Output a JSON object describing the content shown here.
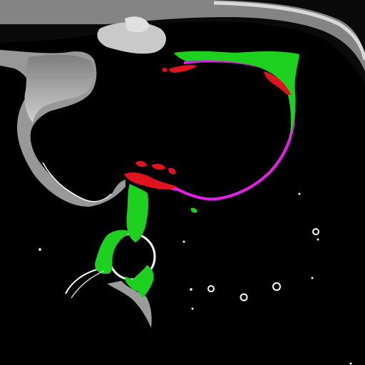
{
  "image": {
    "kind": "axial CT slice with segmentation overlay",
    "background_color": "#000000",
    "tissue_color": "#bcbcbc",
    "overlay_colors": {
      "green": "#1fd11f",
      "red": "#e0141e",
      "magenta": "#e61ee6",
      "blue": "#2a5cff"
    }
  }
}
